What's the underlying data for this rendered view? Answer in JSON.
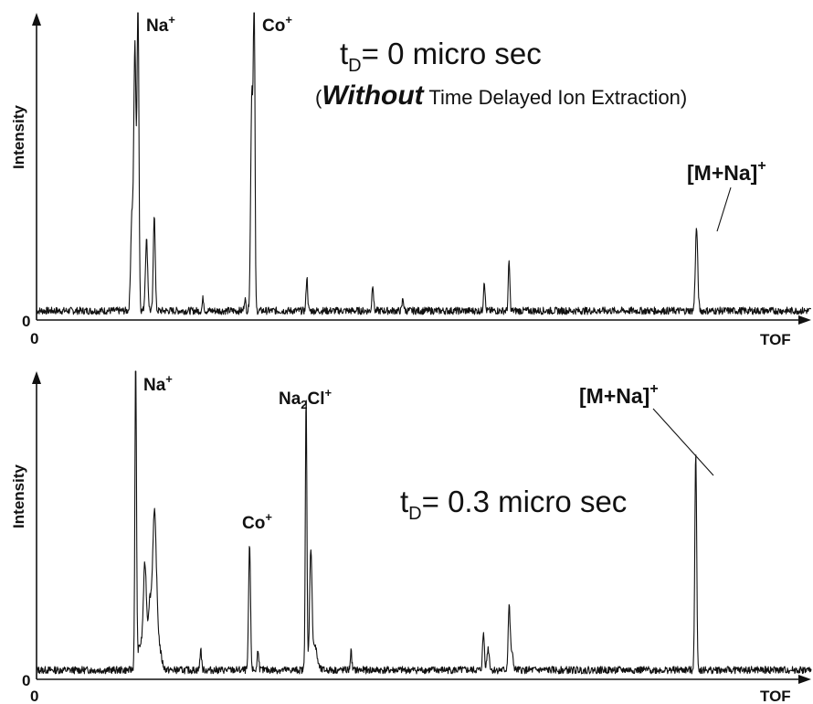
{
  "chart_data": [
    {
      "type": "line",
      "title_main": "t",
      "title_sub": "D",
      "title_rest": "= 0 micro sec",
      "subtitle_open": "(",
      "subtitle_emph": "Without",
      "subtitle_rest": " Time Delayed Ion Extraction)",
      "xlabel": "TOF",
      "ylabel": "Intensity",
      "x_origin_label": "0",
      "y_origin_label": "0",
      "xlim": [
        0,
        100
      ],
      "ylim": [
        0,
        100
      ],
      "baseline": 3,
      "noise": 1.2,
      "peaks": [
        {
          "x": 12.3,
          "h": 30,
          "w": 0.15
        },
        {
          "x": 12.7,
          "h": 86,
          "w": 0.15
        },
        {
          "x": 13.1,
          "h": 100,
          "w": 0.12
        },
        {
          "x": 14.2,
          "h": 23,
          "w": 0.15
        },
        {
          "x": 15.2,
          "h": 32,
          "w": 0.12
        },
        {
          "x": 21.5,
          "h": 4,
          "w": 0.1
        },
        {
          "x": 26.9,
          "h": 4,
          "w": 0.1
        },
        {
          "x": 27.8,
          "h": 72,
          "w": 0.15
        },
        {
          "x": 28.1,
          "h": 100,
          "w": 0.1
        },
        {
          "x": 34.9,
          "h": 11,
          "w": 0.1
        },
        {
          "x": 43.4,
          "h": 9,
          "w": 0.1
        },
        {
          "x": 47.3,
          "h": 4,
          "w": 0.1
        },
        {
          "x": 57.8,
          "h": 10,
          "w": 0.1
        },
        {
          "x": 61.0,
          "h": 16,
          "w": 0.1
        },
        {
          "x": 85.2,
          "h": 27,
          "w": 0.15
        }
      ],
      "annotations": [
        {
          "text": "Na",
          "sup": "+",
          "x": 13.1,
          "y": 100
        },
        {
          "text": "Co",
          "sup": "+",
          "x": 28.1,
          "y": 100
        },
        {
          "text": "[M+Na]",
          "sup": "+",
          "x": 85.2,
          "y": 27
        }
      ]
    },
    {
      "type": "line",
      "title_main": "t",
      "title_sub": "D",
      "title_rest": "= 0.3 micro sec",
      "xlabel": "TOF",
      "ylabel": "Intensity",
      "x_origin_label": "0",
      "y_origin_label": "0",
      "xlim": [
        0,
        100
      ],
      "ylim": [
        0,
        100
      ],
      "baseline": 3,
      "noise": 1.2,
      "peaks": [
        {
          "x": 12.8,
          "h": 100,
          "w": 0.1
        },
        {
          "x": 13.4,
          "h": 8,
          "w": 0.4
        },
        {
          "x": 14.0,
          "h": 32,
          "w": 0.2
        },
        {
          "x": 14.6,
          "h": 20,
          "w": 0.2
        },
        {
          "x": 15.2,
          "h": 45,
          "w": 0.25
        },
        {
          "x": 15.6,
          "h": 10,
          "w": 0.4
        },
        {
          "x": 21.2,
          "h": 7,
          "w": 0.1
        },
        {
          "x": 27.5,
          "h": 41,
          "w": 0.12
        },
        {
          "x": 28.6,
          "h": 7,
          "w": 0.1
        },
        {
          "x": 34.8,
          "h": 89,
          "w": 0.1
        },
        {
          "x": 35.4,
          "h": 38,
          "w": 0.15
        },
        {
          "x": 35.9,
          "h": 8,
          "w": 0.3
        },
        {
          "x": 40.6,
          "h": 6,
          "w": 0.1
        },
        {
          "x": 57.7,
          "h": 12,
          "w": 0.12
        },
        {
          "x": 58.3,
          "h": 7,
          "w": 0.15
        },
        {
          "x": 61.0,
          "h": 19,
          "w": 0.12
        },
        {
          "x": 61.3,
          "h": 6,
          "w": 0.2
        },
        {
          "x": 85.1,
          "h": 70,
          "w": 0.12
        }
      ],
      "annotations": [
        {
          "text": "Na",
          "sup": "+",
          "x": 12.8,
          "y": 100
        },
        {
          "text": "Co",
          "sup": "+",
          "x": 27.5,
          "y": 41
        },
        {
          "text": "Na",
          "sub": "2",
          "text2": "Cl",
          "sup": "+",
          "x": 34.8,
          "y": 89
        },
        {
          "text": "[M+Na]",
          "sup": "+",
          "x": 85.1,
          "y": 70
        }
      ]
    }
  ]
}
